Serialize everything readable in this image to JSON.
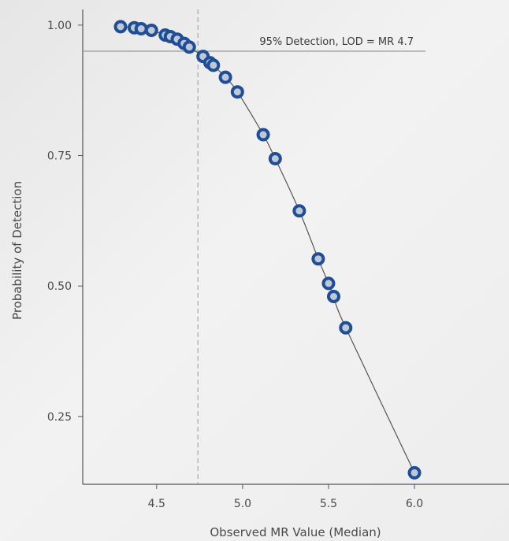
{
  "chart_data": {
    "type": "scatter",
    "title": "",
    "xlabel": "Observed MR Value (Median)",
    "ylabel": "Probability of Detection",
    "xlim": [
      4.07,
      6.55
    ],
    "ylim": [
      0.12,
      1.03
    ],
    "x_ticks": [
      4.5,
      5.0,
      5.5,
      6.0
    ],
    "x_tick_labels": [
      "4.5",
      "5.0",
      "5.5",
      "6.0"
    ],
    "y_ticks": [
      0.25,
      0.5,
      0.75,
      1.0
    ],
    "y_tick_labels": [
      "0.25",
      "0.50",
      "0.75",
      "1.00"
    ],
    "grid": false,
    "threshold_y": 0.95,
    "lod_x": 4.74,
    "annotation": "95% Detection, LOD = MR 4.7",
    "colors": {
      "point_ring": "#1f4e96",
      "point_center": "#bfc8d6",
      "curve": "#555555",
      "reference": "#9a9a9a"
    },
    "series": [
      {
        "name": "",
        "x": [
          4.29,
          4.37,
          4.41,
          4.47,
          4.55,
          4.58,
          4.62,
          4.66,
          4.69,
          4.77,
          4.81,
          4.83,
          4.9,
          4.97,
          5.12,
          5.19,
          5.33,
          5.44,
          5.5,
          5.53,
          5.6,
          6.0
        ],
        "y": [
          0.997,
          0.995,
          0.993,
          0.99,
          0.981,
          0.978,
          0.973,
          0.965,
          0.958,
          0.94,
          0.928,
          0.923,
          0.9,
          0.872,
          0.79,
          0.744,
          0.644,
          0.552,
          0.505,
          0.48,
          0.42,
          0.142
        ]
      }
    ]
  }
}
